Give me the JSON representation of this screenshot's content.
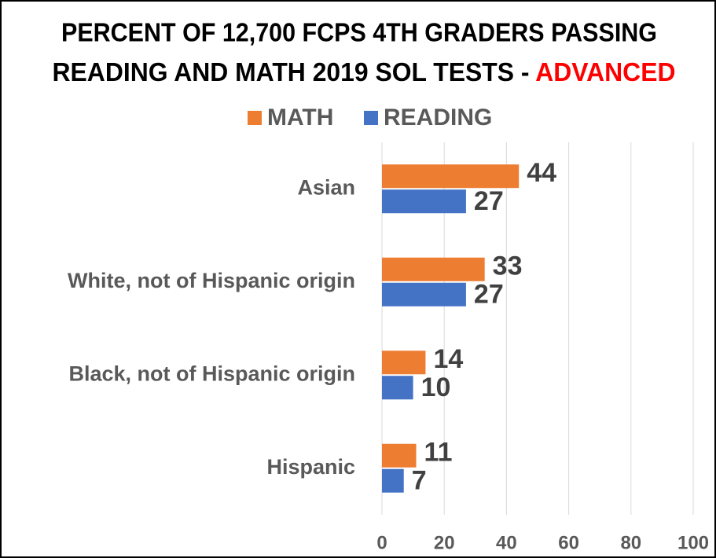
{
  "chart_data": {
    "type": "hbar",
    "title": [
      "PERCENT OF 12,700 FCPS 4TH GRADERS PASSING",
      "READING AND MATH 2019 SOL TESTS - "
    ],
    "title_highlight": "ADVANCED",
    "title_highlight_color": "#ff0000",
    "categories": [
      "Asian",
      "White, not of Hispanic origin",
      "Black, not of Hispanic origin",
      "Hispanic"
    ],
    "series": [
      {
        "name": "MATH",
        "color": "#ed7d31",
        "values": [
          44,
          33,
          14,
          11
        ]
      },
      {
        "name": "READING",
        "color": "#4472c4",
        "values": [
          27,
          27,
          10,
          7
        ]
      }
    ],
    "xlim": [
      0,
      100
    ],
    "xticks": [
      0,
      20,
      40,
      60,
      80,
      100
    ],
    "grid": true,
    "legend": "top"
  }
}
